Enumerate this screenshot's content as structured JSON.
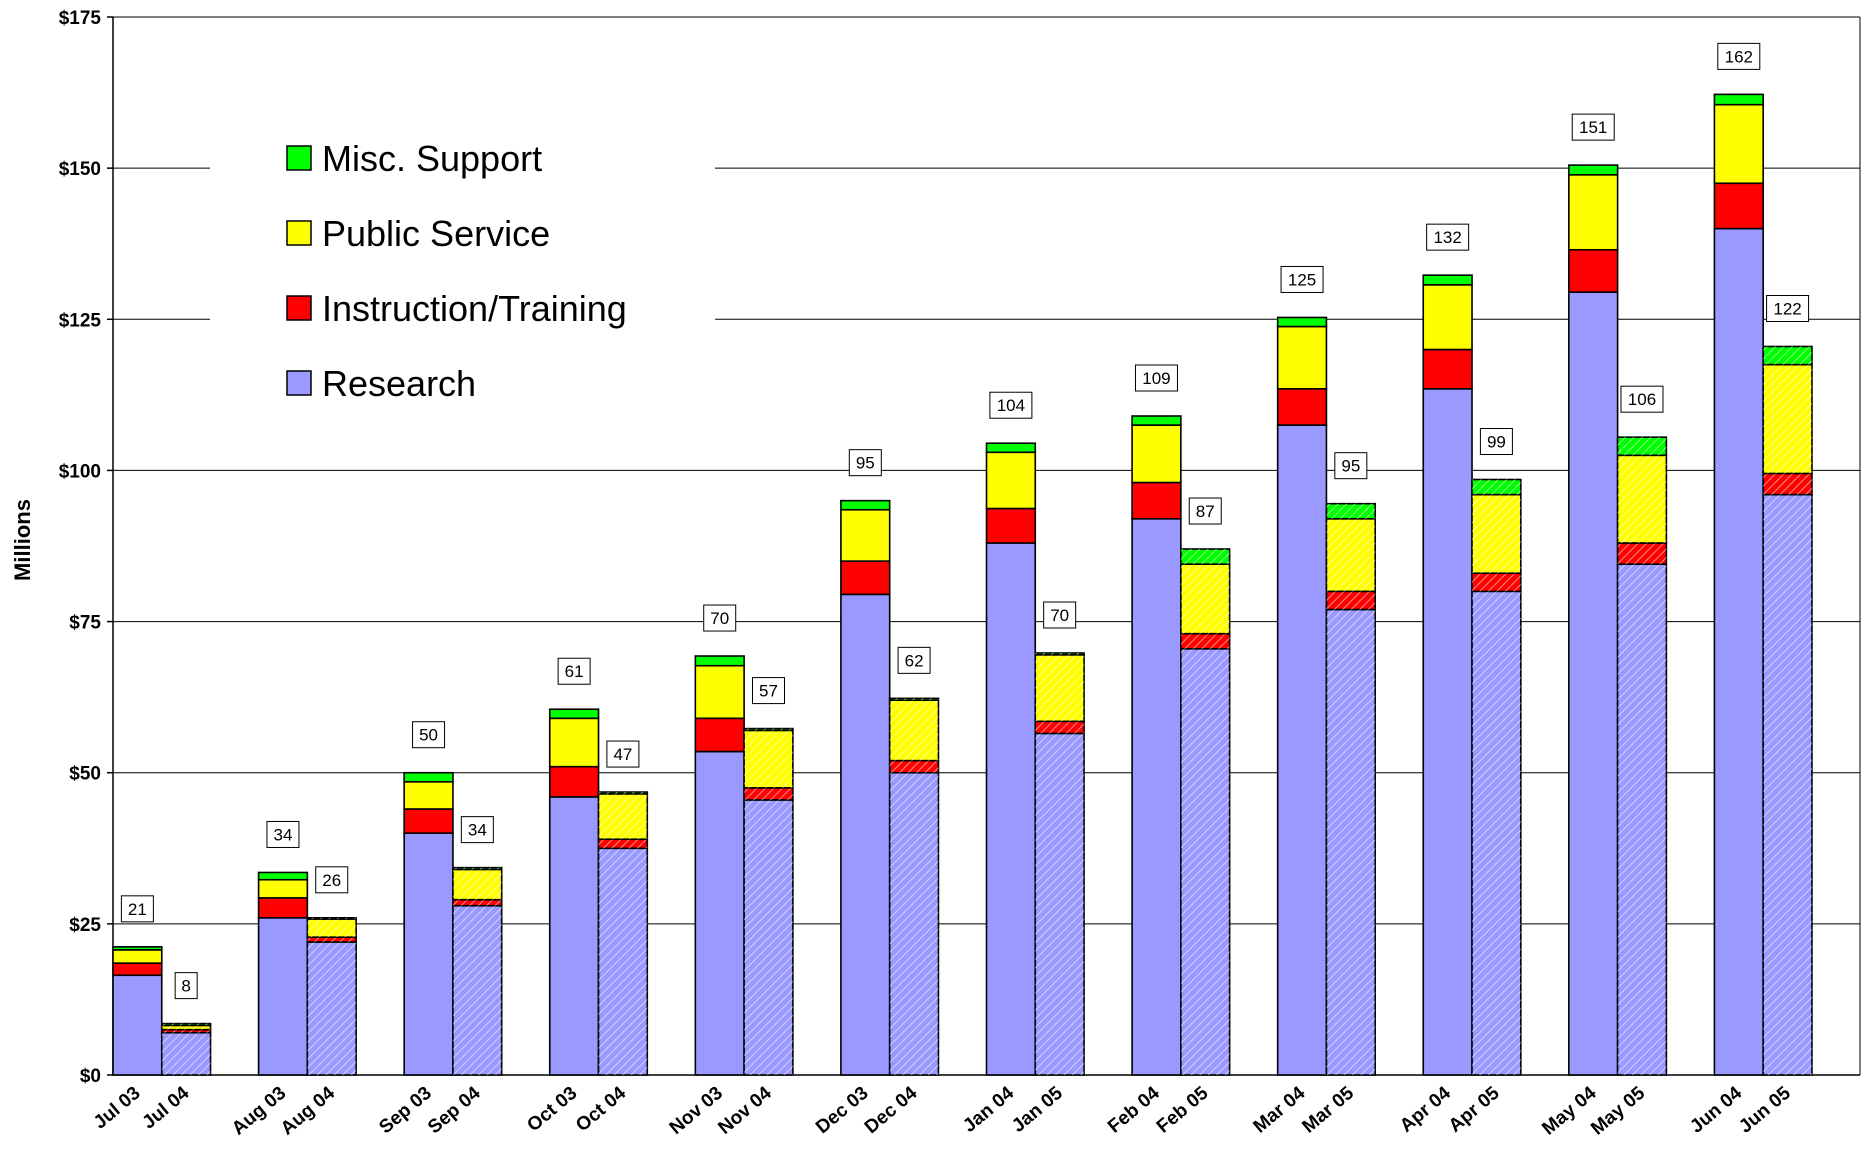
{
  "chart_data": {
    "type": "bar",
    "stacked": true,
    "ylabel": "Millions",
    "ylim": [
      0,
      175
    ],
    "yticks": [
      0,
      25,
      50,
      75,
      100,
      125,
      150,
      175
    ],
    "ytick_labels": [
      "$0",
      "$25",
      "$50",
      "$75",
      "$100",
      "$125",
      "$150",
      "$175"
    ],
    "grid": true,
    "legend_position": "top-left",
    "legend_order": [
      "Misc. Support",
      "Public Service",
      "Instruction/Training",
      "Research"
    ],
    "series": [
      {
        "name": "Research",
        "color": "#9999ff"
      },
      {
        "name": "Instruction/Training",
        "color": "#ff0000"
      },
      {
        "name": "Public Service",
        "color": "#ffff00"
      },
      {
        "name": "Misc. Support",
        "color": "#00ff00"
      }
    ],
    "groups": [
      {
        "bars": [
          {
            "label": "Jul 03",
            "hatched": false,
            "values": [
              16.5,
              2.0,
              2.2,
              0.5
            ],
            "total_label": "21"
          },
          {
            "label": "Jul 04",
            "hatched": true,
            "values": [
              7.0,
              0.5,
              0.7,
              0.3
            ],
            "total_label": "8"
          }
        ]
      },
      {
        "bars": [
          {
            "label": "Aug 03",
            "hatched": false,
            "values": [
              26.0,
              3.3,
              3.0,
              1.2
            ],
            "total_label": "34"
          },
          {
            "label": "Aug 04",
            "hatched": true,
            "values": [
              22.0,
              0.8,
              3.0,
              0.2
            ],
            "total_label": "26"
          }
        ]
      },
      {
        "bars": [
          {
            "label": "Sep 03",
            "hatched": false,
            "values": [
              40.0,
              4.0,
              4.5,
              1.5
            ],
            "total_label": "50"
          },
          {
            "label": "Sep 04",
            "hatched": true,
            "values": [
              28.0,
              1.0,
              5.0,
              0.3
            ],
            "total_label": "34"
          }
        ]
      },
      {
        "bars": [
          {
            "label": "Oct 03",
            "hatched": false,
            "values": [
              46.0,
              5.0,
              8.0,
              1.5
            ],
            "total_label": "61"
          },
          {
            "label": "Oct 04",
            "hatched": true,
            "values": [
              37.5,
              1.5,
              7.5,
              0.3
            ],
            "total_label": "47"
          }
        ]
      },
      {
        "bars": [
          {
            "label": "Nov 03",
            "hatched": false,
            "values": [
              53.5,
              5.5,
              8.7,
              1.6
            ],
            "total_label": "70"
          },
          {
            "label": "Nov 04",
            "hatched": true,
            "values": [
              45.5,
              2.0,
              9.5,
              0.3
            ],
            "total_label": "57"
          }
        ]
      },
      {
        "bars": [
          {
            "label": "Dec 03",
            "hatched": false,
            "values": [
              79.5,
              5.5,
              8.5,
              1.5
            ],
            "total_label": "95"
          },
          {
            "label": "Dec 04",
            "hatched": true,
            "values": [
              50.0,
              2.0,
              10.0,
              0.3
            ],
            "total_label": "62"
          }
        ]
      },
      {
        "bars": [
          {
            "label": "Jan 04",
            "hatched": false,
            "values": [
              88.0,
              5.7,
              9.3,
              1.5
            ],
            "total_label": "104"
          },
          {
            "label": "Jan 05",
            "hatched": true,
            "values": [
              56.5,
              2.0,
              11.0,
              0.3
            ],
            "total_label": "70"
          }
        ]
      },
      {
        "bars": [
          {
            "label": "Feb 04",
            "hatched": false,
            "values": [
              92.0,
              6.0,
              9.5,
              1.5
            ],
            "total_label": "109"
          },
          {
            "label": "Feb 05",
            "hatched": true,
            "values": [
              70.5,
              2.5,
              11.5,
              2.5
            ],
            "total_label": "87"
          }
        ]
      },
      {
        "bars": [
          {
            "label": "Mar 04",
            "hatched": false,
            "values": [
              107.5,
              6.0,
              10.3,
              1.5
            ],
            "total_label": "125"
          },
          {
            "label": "Mar 05",
            "hatched": true,
            "values": [
              77.0,
              3.0,
              12.0,
              2.5
            ],
            "total_label": "95"
          }
        ]
      },
      {
        "bars": [
          {
            "label": "Apr 04",
            "hatched": false,
            "values": [
              113.5,
              6.5,
              10.7,
              1.6
            ],
            "total_label": "132"
          },
          {
            "label": "Apr 05",
            "hatched": true,
            "values": [
              80.0,
              3.0,
              13.0,
              2.5
            ],
            "total_label": "99"
          }
        ]
      },
      {
        "bars": [
          {
            "label": "May 04",
            "hatched": false,
            "values": [
              129.5,
              7.0,
              12.4,
              1.6
            ],
            "total_label": "151"
          },
          {
            "label": "May 05",
            "hatched": true,
            "values": [
              84.5,
              3.5,
              14.5,
              3.0
            ],
            "total_label": "106"
          }
        ]
      },
      {
        "bars": [
          {
            "label": "Jun 04",
            "hatched": false,
            "values": [
              140.0,
              7.5,
              13.0,
              1.7
            ],
            "total_label": "162"
          },
          {
            "label": "Jun 05",
            "hatched": true,
            "values": [
              96.0,
              3.5,
              18.0,
              3.0
            ],
            "total_label": "122"
          }
        ]
      }
    ]
  }
}
